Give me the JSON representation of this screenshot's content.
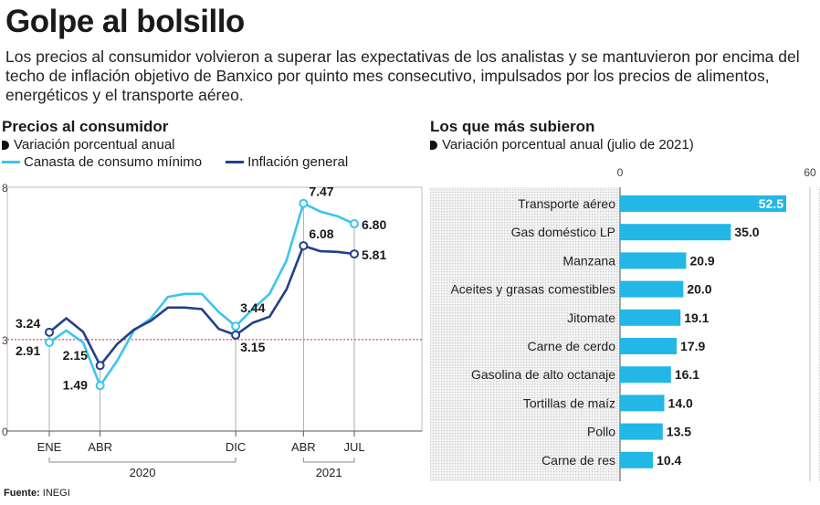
{
  "header": {
    "title": "Golpe al bolsillo",
    "subtitle": "Los precios al consumidor volvieron a superar las expectativas de los analistas y se mantuvieron por encima del techo de inflación objetivo de Banxico por quinto mes consecutivo, impulsados por los precios de alimentos, energéticos y el transporte aéreo."
  },
  "left": {
    "title": "Precios al consumidor",
    "subtitle": "Variación porcentual anual",
    "legend": {
      "series1": "Canasta de consumo mínimo",
      "series2": "Inflación general"
    }
  },
  "right": {
    "title": "Los que más subieron",
    "subtitle": "Variación porcentual anual (julio de 2021)"
  },
  "source": {
    "label": "Fuente:",
    "value": "INEGI"
  },
  "colors": {
    "canasta": "#3cc4ec",
    "general": "#233f8b",
    "bar": "#22b7e6",
    "target": "#d6232a",
    "dark": "#1a1a1a"
  },
  "chart_data": [
    {
      "type": "line",
      "title": "Precios al consumidor",
      "ylabel": "Variación porcentual anual",
      "ylim": [
        0,
        8
      ],
      "yticks": [
        0,
        3,
        8
      ],
      "target_line": 3,
      "x_tick_labels": [
        "ENE",
        "ABR",
        "DIC",
        "ABR",
        "JUL"
      ],
      "x_tick_index": [
        0,
        3,
        11,
        15,
        18
      ],
      "year_labels": [
        {
          "label": "2020",
          "from": 0,
          "to": 11
        },
        {
          "label": "2021",
          "from": 15,
          "to": 18
        }
      ],
      "series": [
        {
          "name": "Canasta de consumo mínimo",
          "values": [
            2.91,
            3.3,
            2.9,
            1.49,
            2.3,
            3.3,
            3.7,
            4.4,
            4.5,
            4.5,
            3.9,
            3.44,
            4.0,
            4.5,
            5.6,
            7.47,
            7.2,
            7.05,
            6.8
          ],
          "labeled": {
            "0": "2.91",
            "3": "1.49",
            "11": "3.44",
            "15": "7.47",
            "18": "6.80"
          }
        },
        {
          "name": "Inflación general",
          "values": [
            3.24,
            3.7,
            3.25,
            2.15,
            2.85,
            3.33,
            3.62,
            4.05,
            4.05,
            4.0,
            3.35,
            3.15,
            3.55,
            3.75,
            4.65,
            6.08,
            5.9,
            5.88,
            5.81
          ],
          "labeled": {
            "0": "3.24",
            "3": "2.15",
            "11": "3.15",
            "15": "6.08",
            "18": "5.81"
          }
        }
      ]
    },
    {
      "type": "bar",
      "orientation": "horizontal",
      "title": "Los que más subieron",
      "xlim": [
        0,
        60
      ],
      "xticks": [
        0,
        60
      ],
      "categories": [
        "Transporte aéreo",
        "Gas doméstico LP",
        "Manzana",
        "Aceites y grasas comestibles",
        "Jitomate",
        "Carne de cerdo",
        "Gasolina de alto octanaje",
        "Tortillas de maíz",
        "Pollo",
        "Carne de res"
      ],
      "values": [
        52.5,
        35.0,
        20.9,
        20.0,
        19.1,
        17.9,
        16.1,
        14.0,
        13.5,
        10.4
      ],
      "value_labels": [
        "52.5",
        "35.0",
        "20.9",
        "20.0",
        "19.1",
        "17.9",
        "16.1",
        "14.0",
        "13.5",
        "10.4"
      ]
    }
  ]
}
